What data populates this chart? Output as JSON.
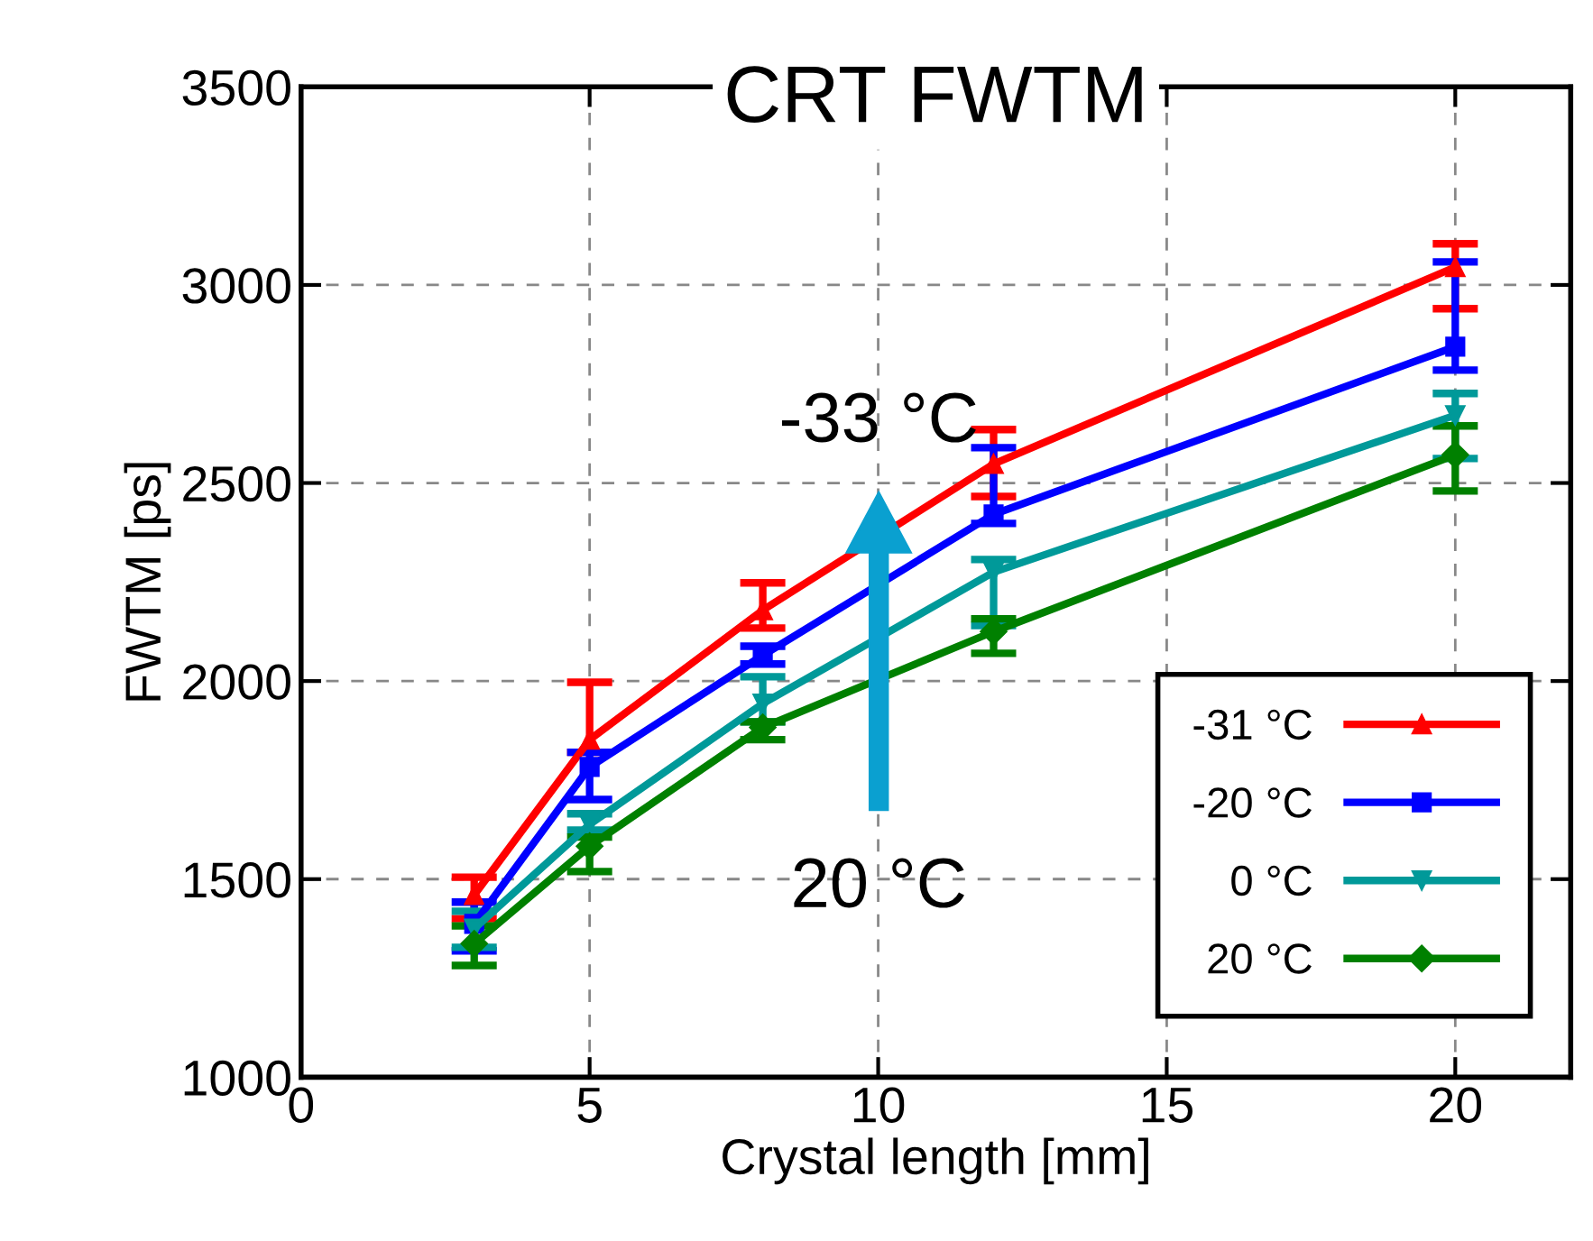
{
  "chart_data": {
    "type": "line",
    "title": "CRT FWTM",
    "xlabel": "Crystal length [mm]",
    "ylabel": "FWTM [ps]",
    "x": [
      3,
      5,
      8,
      12,
      20
    ],
    "series": [
      {
        "name": "-31 °C",
        "color": "#ff0000",
        "marker": "triangle",
        "values": [
          1460,
          1852,
          2179,
          2548,
          3045
        ],
        "errors": [
          [
            1400,
            1505
          ],
          [
            1820,
            1997
          ],
          [
            2134,
            2248
          ],
          [
            2466,
            2635
          ],
          [
            2940,
            3104
          ]
        ]
      },
      {
        "name": "-20 °C",
        "color": "#0000ff",
        "marker": "square",
        "values": [
          1387,
          1783,
          2065,
          2421,
          2844
        ],
        "errors": [
          [
            1319,
            1442
          ],
          [
            1701,
            1820
          ],
          [
            2043,
            2088
          ],
          [
            2398,
            2589
          ],
          [
            2785,
            3058
          ]
        ]
      },
      {
        "name": "0 °C",
        "color": "#009999",
        "marker": "triangle_down",
        "values": [
          1375,
          1638,
          1943,
          2275,
          2671
        ],
        "errors": [
          [
            1328,
            1419
          ],
          [
            1624,
            1665
          ],
          [
            1897,
            2011
          ],
          [
            2140,
            2307
          ],
          [
            2562,
            2726
          ]
        ]
      },
      {
        "name": "20 °C",
        "color": "#008000",
        "marker": "diamond",
        "values": [
          1337,
          1583,
          1883,
          2125,
          2571
        ],
        "errors": [
          [
            1282,
            1382
          ],
          [
            1519,
            1606
          ],
          [
            1852,
            1897
          ],
          [
            2070,
            2157
          ],
          [
            2480,
            2644
          ]
        ]
      }
    ],
    "xlim": [
      0,
      22
    ],
    "xticks": [
      0,
      5,
      10,
      15,
      20
    ],
    "ylim": [
      1000,
      3500
    ],
    "yticks": [
      1000,
      1500,
      2000,
      2500,
      3000,
      3500
    ],
    "grid": true,
    "legend": "bottom right",
    "line_style": "solid",
    "annotations": [
      "-33 °C",
      "20 °C"
    ]
  }
}
